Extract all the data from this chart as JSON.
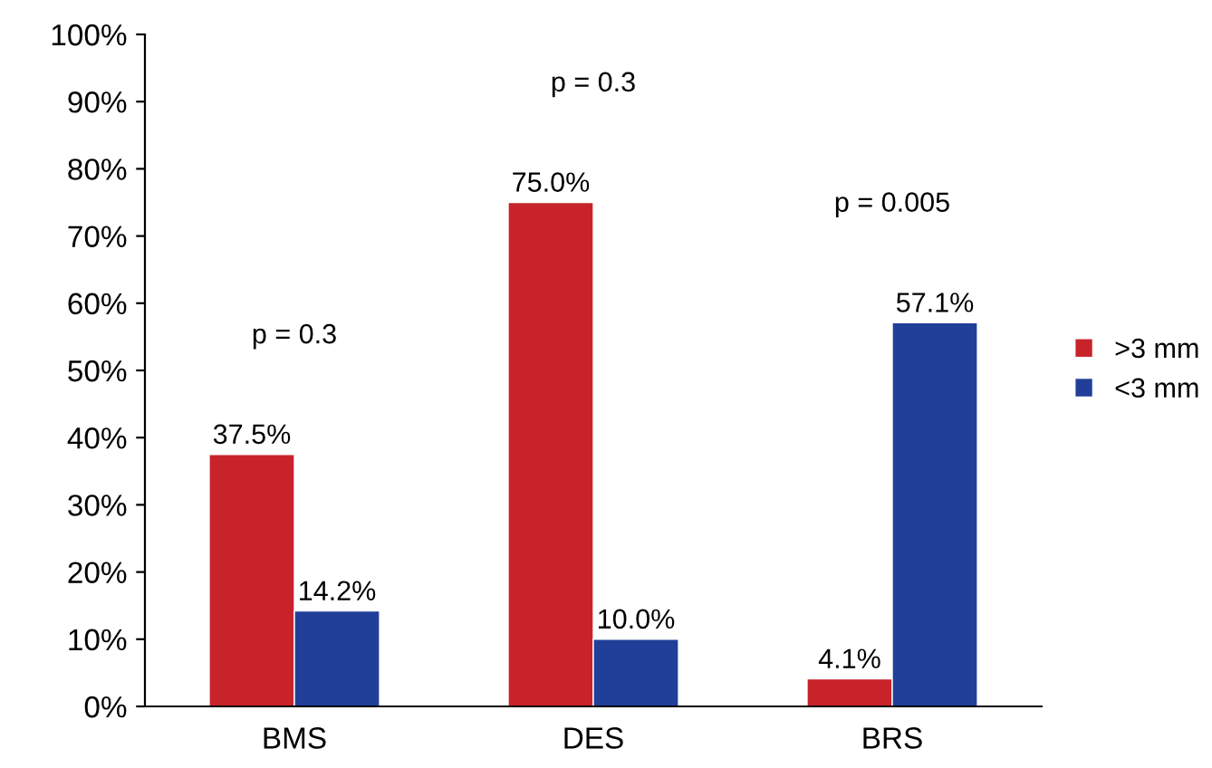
{
  "chart_data": {
    "type": "bar",
    "categories": [
      "BMS",
      "DES",
      "BRS"
    ],
    "series": [
      {
        "name": ">3 mm",
        "color": "#c8232b",
        "values": [
          37.5,
          75.0,
          4.1
        ],
        "value_labels": [
          "37.5%",
          "75.0%",
          "4.1%"
        ]
      },
      {
        "name": "<3 mm",
        "color": "#213f99",
        "values": [
          14.2,
          10.0,
          57.1
        ],
        "value_labels": [
          "14.2%",
          "10.0%",
          "57.1%"
        ]
      }
    ],
    "ylim": [
      0,
      100
    ],
    "yticks": [
      {
        "value": 0,
        "label": "0%"
      },
      {
        "value": 10,
        "label": "10%"
      },
      {
        "value": 20,
        "label": "20%"
      },
      {
        "value": 30,
        "label": "30%"
      },
      {
        "value": 40,
        "label": "40%"
      },
      {
        "value": 50,
        "label": "50%"
      },
      {
        "value": 60,
        "label": "60%"
      },
      {
        "value": 70,
        "label": "70%"
      },
      {
        "value": 80,
        "label": "80%"
      },
      {
        "value": 90,
        "label": "90%"
      },
      {
        "value": 100,
        "label": "100%"
      }
    ],
    "annotations": [
      "p = 0.3",
      "p = 0.3",
      "p = 0.005"
    ],
    "grid": false,
    "legend": "right"
  }
}
